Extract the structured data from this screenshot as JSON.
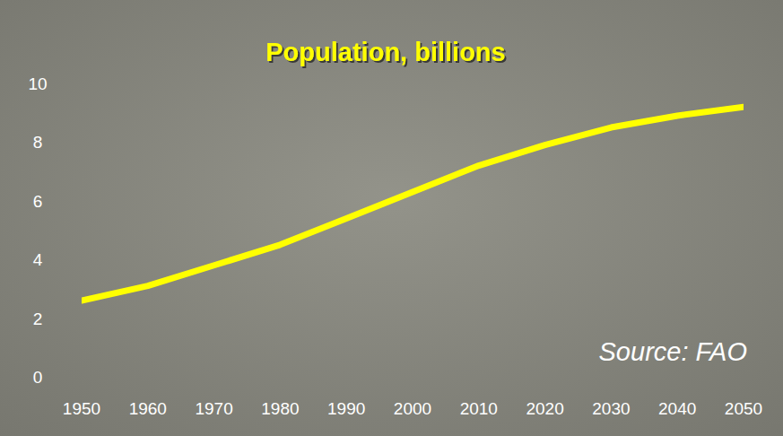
{
  "chart_data": {
    "type": "line",
    "title": "Population, billions",
    "annotation": "Source: FAO",
    "x": [
      1950,
      1960,
      1970,
      1980,
      1990,
      2000,
      2010,
      2020,
      2030,
      2040,
      2050
    ],
    "values": [
      2.6,
      3.1,
      3.8,
      4.5,
      5.4,
      6.3,
      7.2,
      7.9,
      8.5,
      8.9,
      9.2
    ],
    "color": "#ffff00",
    "xlim": [
      1950,
      2050
    ],
    "xticks": [
      1950,
      1960,
      1970,
      1980,
      1990,
      2000,
      2010,
      2020,
      2030,
      2040,
      2050
    ],
    "ylim": [
      0,
      10
    ],
    "yticks": [
      0,
      2,
      4,
      6,
      8,
      10
    ],
    "grid": false
  }
}
